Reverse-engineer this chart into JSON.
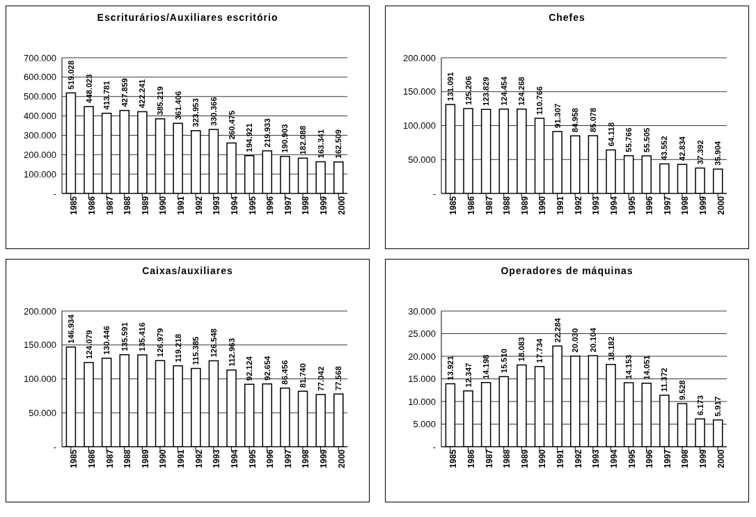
{
  "chart_data": [
    {
      "type": "bar",
      "title": "Escriturários/Auxiliares escritório",
      "categories": [
        "1985",
        "1986",
        "1987",
        "1988",
        "1989",
        "1990",
        "1991",
        "1992",
        "1993",
        "1994",
        "1995",
        "1996",
        "1997",
        "1998",
        "1999",
        "2000"
      ],
      "values": [
        519028,
        448023,
        413781,
        427859,
        422241,
        385219,
        361406,
        323953,
        330366,
        260475,
        194921,
        219933,
        190903,
        182088,
        163341,
        162509
      ],
      "value_labels": [
        "519.028",
        "448.023",
        "413.781",
        "427.859",
        "422.241",
        "385.219",
        "361.406",
        "323.953",
        "330.366",
        "260.475",
        "194.921",
        "219.933",
        "190.903",
        "182.088",
        "163.341",
        "162.509"
      ],
      "color": "#ffffff",
      "ylim": [
        0,
        700000
      ],
      "yticks": [
        {
          "value": 0,
          "label": "-"
        },
        {
          "value": 100000,
          "label": "100.000"
        },
        {
          "value": 200000,
          "label": "200.000"
        },
        {
          "value": 300000,
          "label": "300.000"
        },
        {
          "value": 400000,
          "label": "400.000"
        },
        {
          "value": 500000,
          "label": "500.000"
        },
        {
          "value": 600000,
          "label": "600.000"
        },
        {
          "value": 700000,
          "label": "700.000"
        }
      ],
      "grid": "y"
    },
    {
      "type": "bar",
      "title": "Chefes",
      "categories": [
        "1985",
        "1986",
        "1987",
        "1988",
        "1989",
        "1990",
        "1991",
        "1992",
        "1993",
        "1994",
        "1995",
        "1996",
        "1997",
        "1998",
        "1999",
        "2000"
      ],
      "values": [
        131091,
        125206,
        123829,
        124454,
        124268,
        110766,
        91307,
        84958,
        85078,
        64118,
        55766,
        55505,
        43552,
        42834,
        37392,
        35904
      ],
      "value_labels": [
        "131.091",
        "125.206",
        "123.829",
        "124.454",
        "124.268",
        "110.766",
        "91.307",
        "84.958",
        "85.078",
        "64.118",
        "55.766",
        "55.505",
        "43.552",
        "42.834",
        "37.392",
        "35.904"
      ],
      "color": "#ffffff",
      "ylim": [
        0,
        200000
      ],
      "yticks": [
        {
          "value": 0,
          "label": "-"
        },
        {
          "value": 50000,
          "label": "50.000"
        },
        {
          "value": 100000,
          "label": "100.000"
        },
        {
          "value": 150000,
          "label": "150.000"
        },
        {
          "value": 200000,
          "label": "200.000"
        }
      ],
      "grid": "y"
    },
    {
      "type": "bar",
      "title": "Caixas/auxiliares",
      "categories": [
        "1985",
        "1986",
        "1987",
        "1988",
        "1989",
        "1990",
        "1991",
        "1992",
        "1993",
        "1994",
        "1995",
        "1996",
        "1997",
        "1998",
        "1999",
        "2000"
      ],
      "values": [
        146934,
        124079,
        130446,
        135591,
        135416,
        126979,
        119218,
        115385,
        126548,
        112963,
        92124,
        92654,
        86456,
        81740,
        77042,
        77568
      ],
      "value_labels": [
        "146.934",
        "124.079",
        "130.446",
        "135.591",
        "135.416",
        "126.979",
        "119.218",
        "115.385",
        "126.548",
        "112.963",
        "92.124",
        "92.654",
        "86.456",
        "81.740",
        "77.042",
        "77.568"
      ],
      "color": "#ffffff",
      "ylim": [
        0,
        200000
      ],
      "yticks": [
        {
          "value": 0,
          "label": "-"
        },
        {
          "value": 50000,
          "label": "50.000"
        },
        {
          "value": 100000,
          "label": "100.000"
        },
        {
          "value": 150000,
          "label": "150.000"
        },
        {
          "value": 200000,
          "label": "200.000"
        }
      ],
      "grid": "y"
    },
    {
      "type": "bar",
      "title": "Operadores de máquinas",
      "categories": [
        "1985",
        "1986",
        "1987",
        "1988",
        "1989",
        "1990",
        "1991",
        "1992",
        "1993",
        "1994",
        "1995",
        "1996",
        "1997",
        "1998",
        "1999",
        "2000"
      ],
      "values": [
        13921,
        12347,
        14198,
        15510,
        18083,
        17734,
        22284,
        20030,
        20104,
        18182,
        14153,
        14051,
        11372,
        9528,
        6173,
        5917
      ],
      "value_labels": [
        "13.921",
        "12.347",
        "14.198",
        "15.510",
        "18.083",
        "17.734",
        "22.284",
        "20.030",
        "20.104",
        "18.182",
        "14.153",
        "14.051",
        "11.372",
        "9.528",
        "6.173",
        "5.917"
      ],
      "color": "#ffffff",
      "ylim": [
        0,
        30000
      ],
      "yticks": [
        {
          "value": 0,
          "label": "-"
        },
        {
          "value": 5000,
          "label": "5.000"
        },
        {
          "value": 10000,
          "label": "10.000"
        },
        {
          "value": 15000,
          "label": "15.000"
        },
        {
          "value": 20000,
          "label": "20.000"
        },
        {
          "value": 25000,
          "label": "25.000"
        },
        {
          "value": 30000,
          "label": "30.000"
        }
      ],
      "grid": "y"
    }
  ]
}
